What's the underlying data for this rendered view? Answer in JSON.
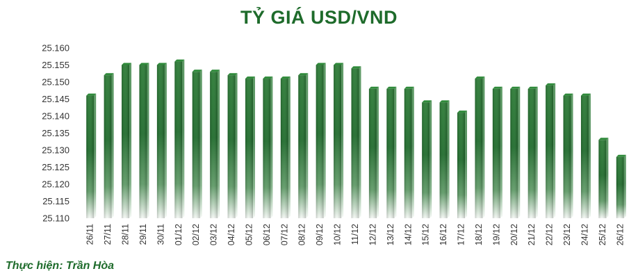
{
  "chart_data": {
    "type": "bar",
    "title": "TỶ GIÁ USD/VND",
    "xlabel": "",
    "ylabel": "",
    "ylim": [
      25110,
      25160
    ],
    "yticks": [
      "25.110",
      "25.115",
      "25.120",
      "25.125",
      "25.130",
      "25.135",
      "25.140",
      "25.145",
      "25.150",
      "25.155",
      "25.160"
    ],
    "categories": [
      "26/11",
      "27/11",
      "28/11",
      "29/11",
      "30/11",
      "01/12",
      "02/12",
      "03/12",
      "04/12",
      "05/12",
      "06/12",
      "07/12",
      "08/12",
      "09/12",
      "10/12",
      "11/12",
      "12/12",
      "13/12",
      "14/12",
      "15/12",
      "16/12",
      "17/12",
      "18/12",
      "19/12",
      "20/12",
      "21/12",
      "22/12",
      "23/12",
      "24/12",
      "25/12",
      "26/12"
    ],
    "values": [
      25146,
      25152,
      25155,
      25155,
      25155,
      25156,
      25153,
      25153,
      25152,
      25151,
      25151,
      25151,
      25152,
      25155,
      25155,
      25154,
      25148,
      25148,
      25148,
      25144,
      25144,
      25141,
      25151,
      25148,
      25148,
      25148,
      25149,
      25146,
      25146,
      25133,
      25128
    ],
    "grid": false,
    "legend": "none",
    "bar_color_top": "#1e6b2b",
    "bar_color_bottom": "#ffffff"
  },
  "credit": "Thực hiện: Trần Hòa"
}
